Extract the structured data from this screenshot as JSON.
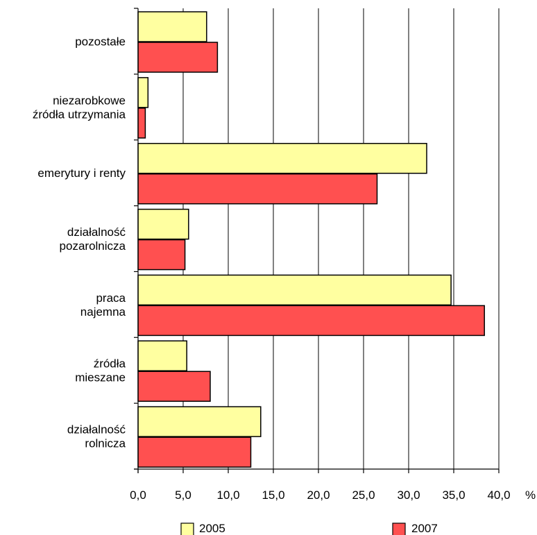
{
  "chart_data": {
    "type": "bar",
    "orientation": "horizontal",
    "categories": [
      [
        "pozostałe"
      ],
      [
        "niezarobkowe",
        "źródła utrzymania"
      ],
      [
        "emerytury i renty"
      ],
      [
        "działalność",
        "pozarolnicza"
      ],
      [
        "praca",
        "najemna"
      ],
      [
        "źródła",
        "mieszane"
      ],
      [
        "działalność",
        "rolnicza"
      ]
    ],
    "series": [
      {
        "name": "2005",
        "color": "#ffffa0",
        "values": [
          7.6,
          1.1,
          32.0,
          5.6,
          34.7,
          5.4,
          13.6
        ]
      },
      {
        "name": "2007",
        "color": "#ff5050",
        "values": [
          8.8,
          0.8,
          26.5,
          5.2,
          38.4,
          8.0,
          12.5
        ]
      }
    ],
    "xlim": [
      0,
      40
    ],
    "xticks": [
      "0,0",
      "5,0",
      "10,0",
      "15,0",
      "20,0",
      "25,0",
      "30,0",
      "35,0",
      "40,0"
    ],
    "x_unit": "%",
    "grid": "vertical",
    "legend_position": "bottom"
  }
}
